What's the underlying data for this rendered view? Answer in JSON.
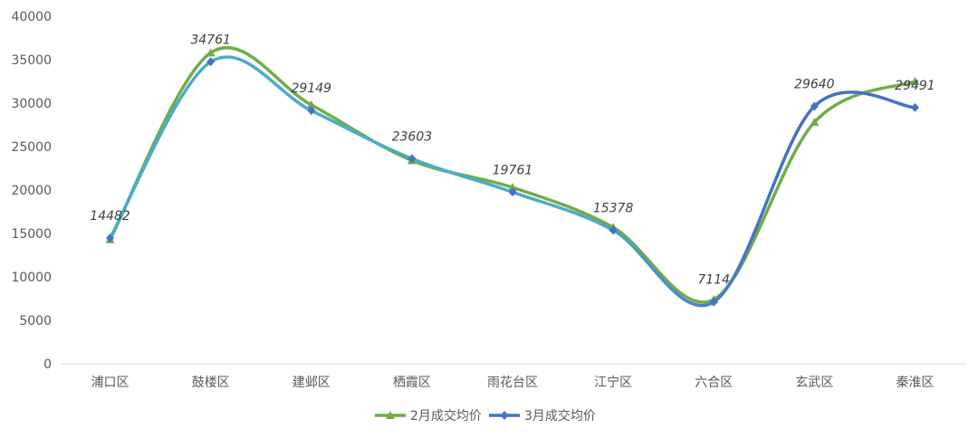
{
  "chart_data": {
    "type": "line",
    "smooth": true,
    "categories": [
      "浦口区",
      "鼓楼区",
      "建邺区",
      "栖霞区",
      "雨花台区",
      "江宁区",
      "六合区",
      "玄武区",
      "秦淮区"
    ],
    "series": [
      {
        "name": "2月成交均价",
        "color": "#70ad47",
        "marker": "triangle",
        "values": [
          14300,
          35800,
          29800,
          23400,
          20300,
          15700,
          7400,
          27800,
          32500
        ]
      },
      {
        "name": "3月成交均价",
        "color": "#4472c4",
        "color_left": "#4bacc6",
        "marker": "diamond",
        "values": [
          14482,
          34761,
          29149,
          23603,
          19761,
          15378,
          7114,
          29640,
          29491
        ]
      }
    ],
    "data_labels": [
      "14482",
      "34761",
      "29149",
      "23603",
      "19761",
      "15378",
      "7114",
      "29640",
      "29491"
    ],
    "ylim": [
      0,
      40000
    ],
    "yticks": [
      "0",
      "5000",
      "10000",
      "15000",
      "20000",
      "25000",
      "30000",
      "35000",
      "40000"
    ],
    "grid": false,
    "legend": "bottom"
  }
}
